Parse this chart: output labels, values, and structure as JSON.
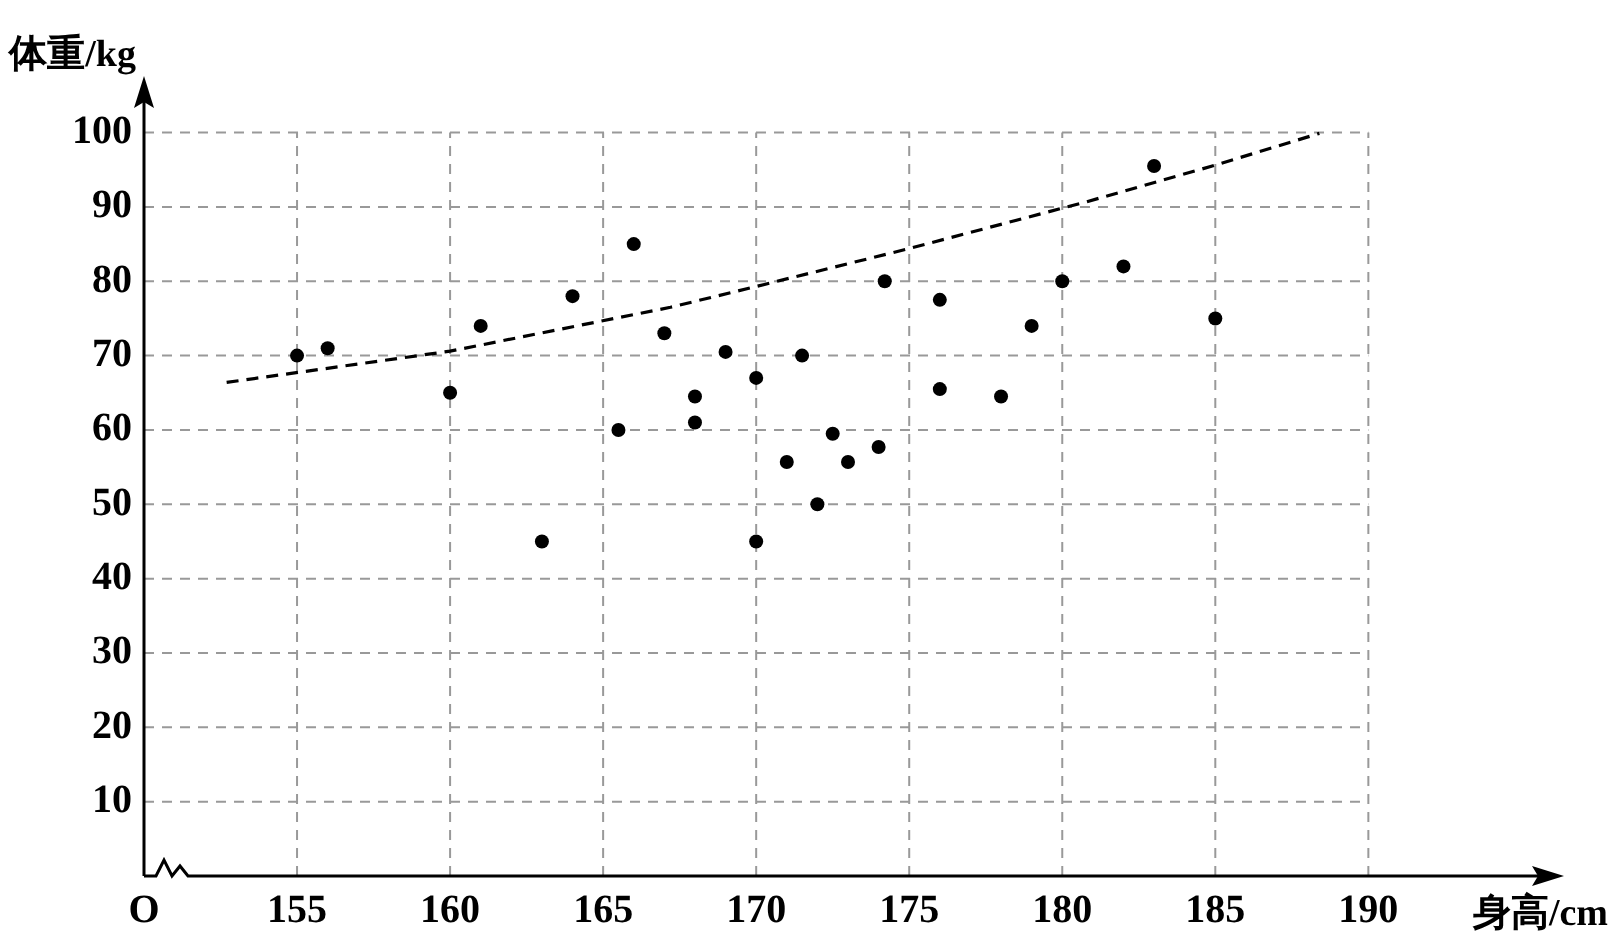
{
  "chart_data": {
    "type": "scatter",
    "xlabel": "身高/cm",
    "ylabel": "体重/kg",
    "xlim": [
      150,
      196
    ],
    "ylim": [
      0,
      106
    ],
    "xticks": [
      {
        "value": 150,
        "label": "O"
      },
      155,
      160,
      165,
      170,
      175,
      180,
      185,
      190
    ],
    "yticks": [
      10,
      20,
      30,
      40,
      50,
      60,
      70,
      80,
      90,
      100
    ],
    "grid": true,
    "legend": false,
    "marker": "circle",
    "series": [
      {
        "color": "#000000",
        "x": [
          155,
          156,
          160,
          161,
          163,
          164,
          165.5,
          166,
          167,
          168,
          168,
          169,
          170,
          170,
          171,
          171.5,
          172,
          172.5,
          173,
          174,
          174.2,
          176,
          176,
          178,
          179,
          180,
          182,
          183,
          185
        ],
        "values": [
          70,
          71,
          65,
          74,
          45,
          78,
          60,
          85,
          73,
          64.5,
          61,
          70.5,
          67,
          45,
          55.7,
          70,
          50,
          59.5,
          55.7,
          57.7,
          80,
          77.5,
          65.5,
          64.5,
          74,
          80,
          82,
          95.5,
          75
        ]
      },
      {
        "type": "line",
        "color": "#000000",
        "marker": "none",
        "line_style": "dashed",
        "x": [
          152.7,
          160,
          167.2,
          169.9,
          174.9,
          180.8,
          184.9,
          188.4
        ],
        "values": [
          66.4,
          70.6,
          76.5,
          79.2,
          84.3,
          90.7,
          95.5,
          99.9
        ]
      }
    ]
  }
}
